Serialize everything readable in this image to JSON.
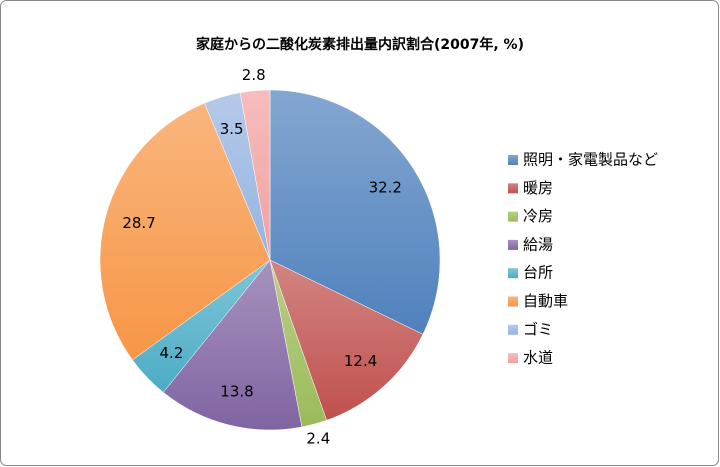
{
  "chart_data": {
    "type": "pie",
    "title": "家庭からの二酸化炭素排出量内訳割合(2007年, %)",
    "categories": [
      "照明・家電製品など",
      "暖房",
      "冷房",
      "給湯",
      "台所",
      "自動車",
      "ゴミ",
      "水道"
    ],
    "values": [
      32.2,
      12.4,
      2.4,
      13.8,
      4.2,
      28.7,
      3.5,
      2.8
    ],
    "colors": [
      "#4f81bd",
      "#c0504d",
      "#9bbb59",
      "#8064a2",
      "#4bacc6",
      "#f79646",
      "#95b3e0",
      "#f2a0a0"
    ],
    "legend": "right"
  }
}
